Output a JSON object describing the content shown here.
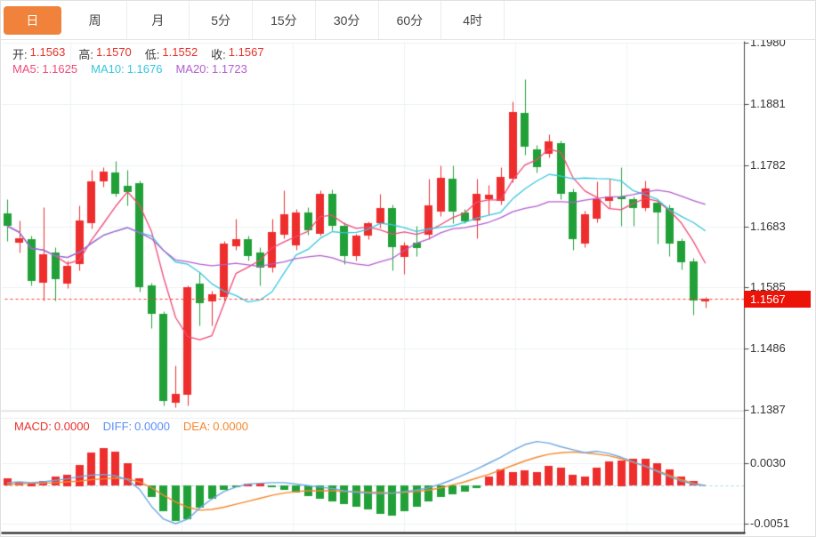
{
  "tabs": {
    "items": [
      {
        "name": "tab-day",
        "label": "日",
        "selected": true
      },
      {
        "name": "tab-week",
        "label": "周",
        "selected": false
      },
      {
        "name": "tab-month",
        "label": "月",
        "selected": false
      },
      {
        "name": "tab-5min",
        "label": "5分",
        "selected": false
      },
      {
        "name": "tab-15min",
        "label": "15分",
        "selected": false
      },
      {
        "name": "tab-30min",
        "label": "30分",
        "selected": false
      },
      {
        "name": "tab-60min",
        "label": "60分",
        "selected": false
      },
      {
        "name": "tab-4hour",
        "label": "4时",
        "selected": false
      }
    ]
  },
  "legend": {
    "ohlc": [
      {
        "label": "开:",
        "value": "1.1563"
      },
      {
        "label": "高:",
        "value": "1.1570"
      },
      {
        "label": "低:",
        "value": "1.1552"
      },
      {
        "label": "收:",
        "value": "1.1567"
      }
    ],
    "ohlc_value_color": "#e8312a",
    "ma": [
      {
        "label": "MA5:",
        "value": "1.1625",
        "color": "#ef4a77"
      },
      {
        "label": "MA10:",
        "value": "1.1676",
        "color": "#36c6dd"
      },
      {
        "label": "MA20:",
        "value": "1.1723",
        "color": "#b25fce"
      }
    ],
    "macd": [
      {
        "label": "MACD:",
        "value": "0.0000",
        "color": "#e8312a"
      },
      {
        "label": "DIFF:",
        "value": "0.0000",
        "color": "#5b8ff9"
      },
      {
        "label": "DEA:",
        "value": "0.0000",
        "color": "#f5872c"
      }
    ]
  },
  "price_badge": {
    "value": "1.1567",
    "bg": "#ec1308"
  },
  "colors": {
    "up": "#ee2d2d",
    "down": "#21a038",
    "ma5": "#ef4a77",
    "ma10": "#36c6dd",
    "ma20": "#b25fce",
    "diff_line": "#6ea8e0",
    "dea_line": "#f5872c",
    "price_line": "#ff3b30",
    "grid": "#edf1f5",
    "vgrid": "#eef2f6",
    "axis": "#444444",
    "pane_border": "#dcdcdc",
    "bottom_border": "#111111",
    "zero_dash": "#a9d6e5",
    "tab_selected_bg": "#f0823c"
  },
  "chart_data": {
    "type": "candlestick",
    "title": "",
    "main": {
      "y_ticks": [
        "1.1980",
        "1.1881",
        "1.1782",
        "1.1683",
        "1.1585",
        "1.1486",
        "1.1387"
      ],
      "ma_periods": [
        5,
        10,
        20
      ],
      "current_price": 1.1567,
      "candles_ohlc": [
        [
          1.1704,
          1.1727,
          1.166,
          1.1684
        ],
        [
          1.1657,
          1.1693,
          1.1641,
          1.1664
        ],
        [
          1.1663,
          1.1668,
          1.1588,
          1.1595
        ],
        [
          1.1592,
          1.1714,
          1.1564,
          1.1638
        ],
        [
          1.1641,
          1.165,
          1.1564,
          1.1598
        ],
        [
          1.1592,
          1.1628,
          1.1584,
          1.162
        ],
        [
          1.1622,
          1.1717,
          1.1612,
          1.1693
        ],
        [
          1.1688,
          1.1775,
          1.168,
          1.1756
        ],
        [
          1.1756,
          1.1779,
          1.1748,
          1.1772
        ],
        [
          1.177,
          1.1789,
          1.1732,
          1.1736
        ],
        [
          1.1749,
          1.1775,
          1.1717,
          1.1739
        ],
        [
          1.1753,
          1.1757,
          1.1578,
          1.1585
        ],
        [
          1.1588,
          1.1592,
          1.1519,
          1.1542
        ],
        [
          1.1542,
          1.1546,
          1.1394,
          1.1401
        ],
        [
          1.1398,
          1.1459,
          1.1391,
          1.1413
        ],
        [
          1.1411,
          1.1588,
          1.1394,
          1.1585
        ],
        [
          1.1591,
          1.161,
          1.1524,
          1.156
        ],
        [
          1.1562,
          1.158,
          1.1524,
          1.1574
        ],
        [
          1.1569,
          1.166,
          1.1564,
          1.1655
        ],
        [
          1.165,
          1.1696,
          1.1645,
          1.1662
        ],
        [
          1.1662,
          1.1668,
          1.1628,
          1.1635
        ],
        [
          1.1641,
          1.165,
          1.1588,
          1.1617
        ],
        [
          1.1617,
          1.1696,
          1.161,
          1.1674
        ],
        [
          1.167,
          1.1742,
          1.1664,
          1.1703
        ],
        [
          1.1653,
          1.1712,
          1.1646,
          1.1706
        ],
        [
          1.1706,
          1.1714,
          1.167,
          1.1677
        ],
        [
          1.1672,
          1.1742,
          1.1668,
          1.1736
        ],
        [
          1.1736,
          1.1743,
          1.1677,
          1.1684
        ],
        [
          1.1684,
          1.169,
          1.1623,
          1.1635
        ],
        [
          1.1635,
          1.1672,
          1.1628,
          1.1668
        ],
        [
          1.1668,
          1.1692,
          1.1662,
          1.1688
        ],
        [
          1.1688,
          1.1736,
          1.1682,
          1.1713
        ],
        [
          1.1713,
          1.1718,
          1.1612,
          1.165
        ],
        [
          1.1635,
          1.1658,
          1.1607,
          1.1653
        ],
        [
          1.1657,
          1.1684,
          1.1635,
          1.1648
        ],
        [
          1.167,
          1.176,
          1.1662,
          1.1717
        ],
        [
          1.1707,
          1.1782,
          1.17,
          1.1762
        ],
        [
          1.176,
          1.1782,
          1.1688,
          1.1707
        ],
        [
          1.1706,
          1.1712,
          1.1688,
          1.1691
        ],
        [
          1.1693,
          1.176,
          1.1664,
          1.1736
        ],
        [
          1.1727,
          1.175,
          1.1703,
          1.1734
        ],
        [
          1.1724,
          1.1779,
          1.1718,
          1.1763
        ],
        [
          1.176,
          1.1885,
          1.1755,
          1.1868
        ],
        [
          1.1866,
          1.1921,
          1.1799,
          1.1811
        ],
        [
          1.1808,
          1.1815,
          1.177,
          1.1779
        ],
        [
          1.1801,
          1.1832,
          1.1795,
          1.1821
        ],
        [
          1.1818,
          1.1822,
          1.1727,
          1.1736
        ],
        [
          1.1739,
          1.1744,
          1.1646,
          1.1663
        ],
        [
          1.1656,
          1.1708,
          1.165,
          1.1703
        ],
        [
          1.1696,
          1.1756,
          1.169,
          1.1727
        ],
        [
          1.1724,
          1.176,
          1.1713,
          1.1731
        ],
        [
          1.1731,
          1.1779,
          1.1684,
          1.1727
        ],
        [
          1.1727,
          1.1732,
          1.1684,
          1.1713
        ],
        [
          1.1713,
          1.1758,
          1.1708,
          1.1744
        ],
        [
          1.1722,
          1.1727,
          1.1655,
          1.1706
        ],
        [
          1.1713,
          1.1718,
          1.1635,
          1.1655
        ],
        [
          1.166,
          1.1664,
          1.1614,
          1.1626
        ],
        [
          1.1627,
          1.1632,
          1.1541,
          1.1564
        ],
        [
          1.1563,
          1.157,
          1.1552,
          1.1567
        ]
      ]
    },
    "macd": {
      "y_ticks": [
        "0.0030",
        "-0.0051"
      ],
      "hist": [
        0.001,
        0.0005,
        0.0003,
        0.0006,
        0.0012,
        0.0015,
        0.0028,
        0.0044,
        0.005,
        0.0045,
        0.003,
        0.001,
        -0.0015,
        -0.0035,
        -0.0048,
        -0.0045,
        -0.003,
        -0.0018,
        -0.0006,
        -0.0002,
        0.0003,
        0.0003,
        -0.0002,
        -0.0006,
        -0.001,
        -0.0014,
        -0.0018,
        -0.0022,
        -0.0025,
        -0.0028,
        -0.0032,
        -0.0038,
        -0.0041,
        -0.0035,
        -0.0028,
        -0.0022,
        -0.0016,
        -0.0012,
        -0.0008,
        -0.0004,
        0.0012,
        0.0022,
        0.0018,
        0.002,
        0.0018,
        0.0026,
        0.0024,
        0.0014,
        0.0012,
        0.0024,
        0.0032,
        0.0034,
        0.0036,
        0.0036,
        0.003,
        0.0022,
        0.0012,
        0.0006,
        0.0
      ],
      "diff": [
        0.0004,
        0.0005,
        0.0004,
        0.0005,
        0.0007,
        0.0009,
        0.0012,
        0.0014,
        0.0015,
        0.0013,
        0.0008,
        -0.0005,
        -0.0028,
        -0.0045,
        -0.0051,
        -0.0045,
        -0.003,
        -0.0018,
        -0.0008,
        -0.0002,
        0.0002,
        0.0003,
        0.0004,
        0.0004,
        0.0002,
        0.0,
        -0.0002,
        -0.0004,
        -0.0007,
        -0.0009,
        -0.001,
        -0.0011,
        -0.001,
        -0.0008,
        -0.0006,
        -0.0003,
        0.0002,
        0.0008,
        0.0015,
        0.0022,
        0.003,
        0.0038,
        0.0047,
        0.0055,
        0.0059,
        0.0057,
        0.0052,
        0.0048,
        0.0044,
        0.0046,
        0.0043,
        0.0038,
        0.0032,
        0.0026,
        0.0019,
        0.0012,
        0.0006,
        0.0002,
        0.0
      ],
      "dea": [
        0.0002,
        0.0002,
        0.0003,
        0.0003,
        0.0004,
        0.0005,
        0.0006,
        0.0008,
        0.0009,
        0.001,
        0.0009,
        0.0005,
        -0.0003,
        -0.0013,
        -0.0022,
        -0.0029,
        -0.0033,
        -0.0032,
        -0.0029,
        -0.0025,
        -0.0021,
        -0.0017,
        -0.0013,
        -0.001,
        -0.0008,
        -0.0007,
        -0.0007,
        -0.0007,
        -0.0008,
        -0.0008,
        -0.0009,
        -0.0009,
        -0.001,
        -0.0009,
        -0.0008,
        -0.0006,
        -0.0003,
        0.0001,
        0.0005,
        0.001,
        0.0015,
        0.0021,
        0.0027,
        0.0033,
        0.0038,
        0.0042,
        0.0044,
        0.0045,
        0.0044,
        0.0042,
        0.004,
        0.0036,
        0.0031,
        0.0026,
        0.002,
        0.0014,
        0.0008,
        0.0003,
        0.0
      ]
    }
  }
}
